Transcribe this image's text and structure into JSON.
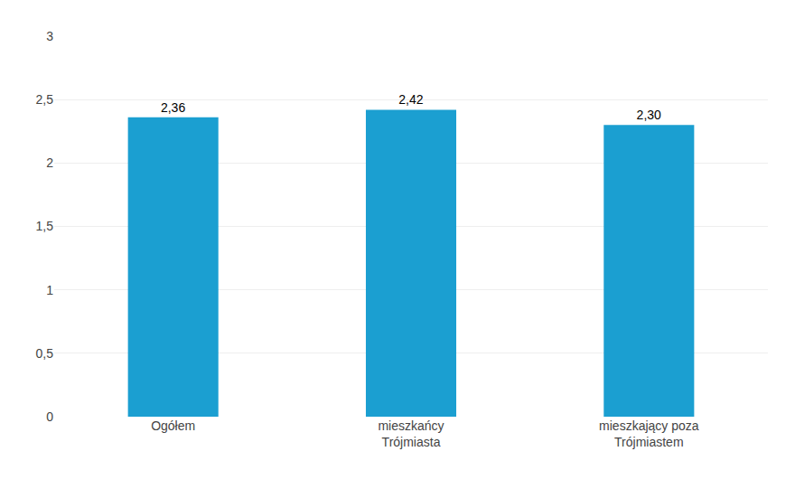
{
  "chart_data": {
    "type": "bar",
    "categories": [
      "Ogółem",
      "mieszkańcy\nTrójmiasta",
      "mieszkający poza\nTrójmiastem"
    ],
    "values": [
      2.36,
      2.42,
      2.3
    ],
    "value_labels": [
      "2,36",
      "2,42",
      "2,30"
    ],
    "data_labels": true,
    "color": "#1b9fd1",
    "ylim": [
      0,
      3
    ],
    "yticks": [
      0,
      {
        "value": 0.5,
        "label": "0,5"
      },
      1,
      {
        "value": 1.5,
        "label": "1,5"
      },
      2,
      {
        "value": 2.5,
        "label": "2,5"
      },
      3
    ],
    "grid": true
  }
}
